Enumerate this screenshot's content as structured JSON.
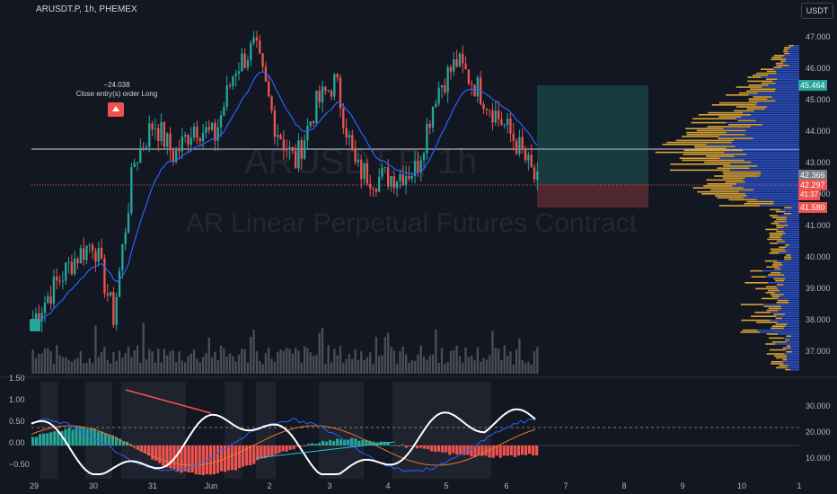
{
  "header": {
    "symbol_line": "ARUSDT.P, 1h, PHEMEX",
    "currency": "USDT"
  },
  "watermark": {
    "symbol": "ARUSDT.P, 1h",
    "description": "AR Linear Perpetual Futures Contract"
  },
  "trade_note": {
    "pnl": "−24.038",
    "label": "Close entry(s) order Long"
  },
  "price_tags": {
    "green_top": "45.464",
    "current": "42.366",
    "red_last": "42.297",
    "countdown": "41:37",
    "stop": "41.580"
  },
  "colors": {
    "up": "#26a69a",
    "down": "#ef5350",
    "background": "#131722",
    "profile_blue": "#2a50c8",
    "profile_orange": "#d9a336",
    "white": "#ffffff"
  },
  "chart_data": [
    {
      "type": "candlestick",
      "title": "ARUSDT.P, 1h, PHEMEX",
      "x_ticks": [
        "29",
        "30",
        "31",
        "Jun",
        "2",
        "3",
        "4",
        "5",
        "6",
        "7",
        "8",
        "9",
        "10",
        "1"
      ],
      "y_ticks": [
        "47.000",
        "46.000",
        "45.000",
        "44.000",
        "43.000",
        "42.000",
        "41.000",
        "40.000",
        "39.000",
        "38.000",
        "37.000"
      ],
      "ylim": [
        36.8,
        47.2
      ],
      "price_path": [
        {
          "x": "29",
          "close": 38.0
        },
        {
          "x": "29",
          "close": 39.0
        },
        {
          "x": "29",
          "close": 39.9
        },
        {
          "x": "30",
          "close": 40.5
        },
        {
          "x": "30",
          "close": 38.1
        },
        {
          "x": "30",
          "close": 43.0
        },
        {
          "x": "30",
          "close": 44.3
        },
        {
          "x": "31",
          "close": 43.2
        },
        {
          "x": "31",
          "close": 44.2
        },
        {
          "x": "31",
          "close": 43.8
        },
        {
          "x": "Jun",
          "close": 46.0
        },
        {
          "x": "Jun",
          "close": 46.7
        },
        {
          "x": "Jun",
          "close": 44.2
        },
        {
          "x": "2",
          "close": 43.0
        },
        {
          "x": "2",
          "close": 44.8
        },
        {
          "x": "2",
          "close": 45.6
        },
        {
          "x": "3",
          "close": 42.8
        },
        {
          "x": "3",
          "close": 42.5
        },
        {
          "x": "3",
          "close": 42.6
        },
        {
          "x": "4",
          "close": 42.8
        },
        {
          "x": "4",
          "close": 45.3
        },
        {
          "x": "5",
          "close": 46.2
        },
        {
          "x": "5",
          "close": 45.4
        },
        {
          "x": "5",
          "close": 44.5
        },
        {
          "x": "6",
          "close": 43.6
        },
        {
          "x": "6",
          "close": 42.3
        }
      ],
      "horizontal_line": 43.45,
      "position_box": {
        "target": 45.464,
        "entry": 42.3,
        "stop": 41.58
      }
    },
    {
      "type": "line",
      "left_y_ticks": [
        "1.50",
        "1.00",
        "0.50",
        "0.00",
        "−0.50"
      ],
      "left_ylim": [
        -0.7,
        1.55
      ],
      "right_y_ticks": [
        "30.000",
        "20.000",
        "10.000"
      ],
      "zero_level": 0.0,
      "reference_level": 0.6
    }
  ]
}
